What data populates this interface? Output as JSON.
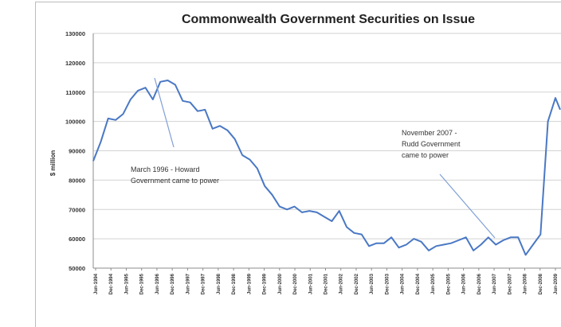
{
  "chart_data": {
    "type": "line",
    "title": "Commonwealth Government Securities on Issue",
    "xlabel": "",
    "ylabel": "$ million",
    "ylim": [
      50000,
      130000
    ],
    "yticks": [
      50000,
      60000,
      70000,
      80000,
      90000,
      100000,
      110000,
      120000,
      130000
    ],
    "ytick_labels": [
      "50000",
      "60000",
      "70000",
      "80000",
      "90000",
      "100000",
      "110000",
      "120000",
      "130000"
    ],
    "xtick_labels": [
      "Jun-1994",
      "Dec-1994",
      "Jun-1995",
      "Dec-1995",
      "Jun-1996",
      "Dec-1996",
      "Jun-1997",
      "Dec-1997",
      "Jun-1998",
      "Dec-1998",
      "Jun-1999",
      "Dec-1999",
      "Jun-2000",
      "Dec-2000",
      "Jun-2001",
      "Dec-2001",
      "Jun-2002",
      "Dec-2002",
      "Jun-2003",
      "Dec-2003",
      "Jun-2004",
      "Dec-2004",
      "Jun-2005",
      "Dec-2005",
      "Jun-2006",
      "Dec-2006",
      "Jun-2007",
      "Dec-2007",
      "Jun-2008",
      "Dec-2008",
      "Jun-2009"
    ],
    "grid": true,
    "series": [
      {
        "color": "#4a78c4",
        "x": [
          "1994-01",
          "1994-04",
          "1994-07",
          "1994-10",
          "1995-01",
          "1995-04",
          "1995-07",
          "1995-10",
          "1996-01",
          "1996-04",
          "1996-07",
          "1996-10",
          "1997-01",
          "1997-04",
          "1997-07",
          "1997-10",
          "1998-01",
          "1998-04",
          "1998-07",
          "1998-10",
          "1999-01",
          "1999-04",
          "1999-07",
          "1999-10",
          "2000-01",
          "2000-04",
          "2000-07",
          "2000-10",
          "2001-01",
          "2001-04",
          "2001-07",
          "2001-10",
          "2002-01",
          "2002-04",
          "2002-07",
          "2002-10",
          "2003-01",
          "2003-04",
          "2003-07",
          "2003-10",
          "2004-01",
          "2004-04",
          "2004-07",
          "2004-10",
          "2005-01",
          "2005-04",
          "2005-07",
          "2005-10",
          "2006-01",
          "2006-04",
          "2006-07",
          "2006-10",
          "2007-01",
          "2007-04",
          "2007-07",
          "2007-10",
          "2008-01",
          "2008-04",
          "2008-07",
          "2008-10",
          "2009-01",
          "2009-04",
          "2009-07",
          "2009-10"
        ],
        "values": [
          86500,
          93000,
          101000,
          100500,
          102500,
          107500,
          110500,
          111500,
          107500,
          113500,
          114000,
          112500,
          107000,
          106500,
          103500,
          104000,
          97500,
          98500,
          97000,
          94000,
          88500,
          87000,
          84000,
          78000,
          75000,
          71000,
          70000,
          71000,
          69000,
          69500,
          69000,
          67500,
          66000,
          69500,
          64000,
          62000,
          61500,
          57500,
          58500,
          58500,
          60500,
          57000,
          58000,
          60000,
          59000,
          56000,
          57500,
          58000,
          58500,
          59500,
          60500,
          56000,
          58000,
          60500,
          58000,
          59500,
          60500,
          60500,
          54500,
          58000,
          61500,
          100000,
          108000,
          104000
        ]
      }
    ],
    "annotations": [
      {
        "lines": [
          "March 1996 - Howard",
          "Government came to power"
        ]
      },
      {
        "lines": [
          "November 2007 -",
          "Rudd Government",
          "came to power"
        ]
      }
    ]
  }
}
